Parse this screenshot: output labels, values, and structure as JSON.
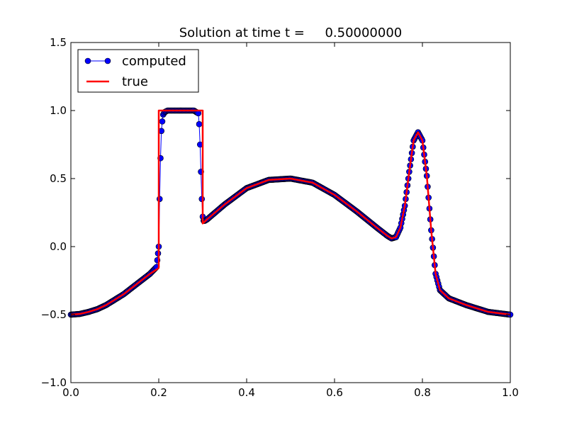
{
  "chart_data": {
    "type": "line",
    "title": "Solution at time t =     0.50000000",
    "xlabel": "",
    "ylabel": "",
    "xlim": [
      0.0,
      1.0
    ],
    "ylim": [
      -1.0,
      1.5
    ],
    "x_ticks": [
      "0.0",
      "0.2",
      "0.4",
      "0.6",
      "0.8",
      "1.0"
    ],
    "y_ticks": [
      "−1.0",
      "−0.5",
      "0.0",
      "0.5",
      "1.0",
      "1.5"
    ],
    "x_tick_values": [
      0.0,
      0.2,
      0.4,
      0.6,
      0.8,
      1.0
    ],
    "y_tick_values": [
      -1.0,
      -0.5,
      0.0,
      0.5,
      1.0,
      1.5
    ],
    "grid": false,
    "legend_position": "upper-left",
    "series": [
      {
        "name": "computed",
        "style": "blue line with circle markers",
        "color": "#0000ff",
        "marker_edge_color": "#000000",
        "x": [
          0.0,
          0.02,
          0.04,
          0.06,
          0.08,
          0.1,
          0.12,
          0.14,
          0.16,
          0.18,
          0.195,
          0.2,
          0.202,
          0.204,
          0.206,
          0.208,
          0.21,
          0.214,
          0.22,
          0.24,
          0.26,
          0.28,
          0.29,
          0.292,
          0.294,
          0.296,
          0.298,
          0.3,
          0.302,
          0.305,
          0.31,
          0.35,
          0.4,
          0.45,
          0.5,
          0.55,
          0.6,
          0.65,
          0.7,
          0.72,
          0.73,
          0.74,
          0.75,
          0.76,
          0.77,
          0.78,
          0.79,
          0.8,
          0.81,
          0.82,
          0.83,
          0.84,
          0.86,
          0.9,
          0.95,
          1.0
        ],
        "y": [
          -0.5,
          -0.495,
          -0.48,
          -0.46,
          -0.43,
          -0.39,
          -0.35,
          -0.3,
          -0.25,
          -0.2,
          -0.15,
          0.0,
          0.35,
          0.65,
          0.85,
          0.92,
          0.97,
          0.99,
          1.0,
          1.0,
          1.0,
          1.0,
          0.98,
          0.9,
          0.75,
          0.55,
          0.35,
          0.22,
          0.19,
          0.19,
          0.2,
          0.31,
          0.43,
          0.49,
          0.5,
          0.47,
          0.38,
          0.26,
          0.13,
          0.08,
          0.06,
          0.07,
          0.14,
          0.3,
          0.55,
          0.78,
          0.84,
          0.78,
          0.52,
          0.12,
          -0.2,
          -0.32,
          -0.38,
          -0.43,
          -0.48,
          -0.5
        ]
      },
      {
        "name": "true",
        "style": "red solid line",
        "color": "#ff0000",
        "x": [
          0.0,
          0.02,
          0.04,
          0.06,
          0.08,
          0.1,
          0.12,
          0.14,
          0.16,
          0.18,
          0.199,
          0.2,
          0.2,
          0.25,
          0.3,
          0.3,
          0.31,
          0.35,
          0.4,
          0.45,
          0.5,
          0.55,
          0.6,
          0.65,
          0.7,
          0.72,
          0.73,
          0.74,
          0.75,
          0.76,
          0.77,
          0.78,
          0.79,
          0.8,
          0.81,
          0.82,
          0.83,
          0.84,
          0.86,
          0.9,
          0.95,
          1.0
        ],
        "y": [
          -0.5,
          -0.495,
          -0.48,
          -0.46,
          -0.43,
          -0.39,
          -0.35,
          -0.3,
          -0.25,
          -0.2,
          -0.16,
          -0.15,
          1.0,
          1.0,
          1.0,
          0.17,
          0.2,
          0.31,
          0.43,
          0.49,
          0.5,
          0.47,
          0.38,
          0.26,
          0.13,
          0.08,
          0.06,
          0.07,
          0.14,
          0.3,
          0.55,
          0.78,
          0.84,
          0.78,
          0.52,
          0.12,
          -0.2,
          -0.32,
          -0.38,
          -0.43,
          -0.48,
          -0.5
        ]
      }
    ]
  }
}
